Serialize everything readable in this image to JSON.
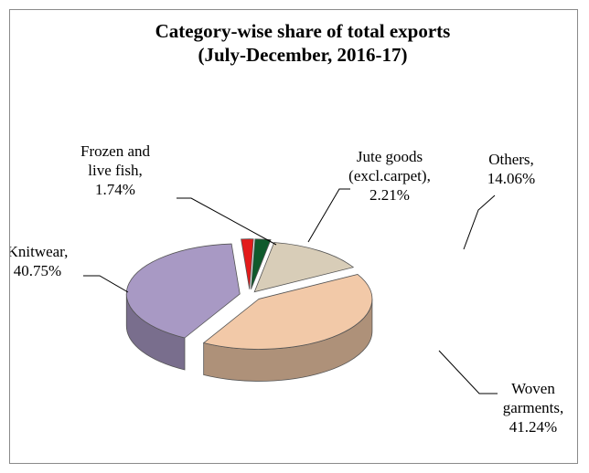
{
  "chart_data": {
    "type": "pie",
    "title": "Category-wise share of total exports",
    "subtitle": "(July-December, 2016-17)",
    "slices": [
      {
        "name": "Others",
        "value": 14.06,
        "label_lines": [
          "Others,",
          "14.06%"
        ],
        "color": "#d8cdb8"
      },
      {
        "name": "Woven garments",
        "value": 41.24,
        "label_lines": [
          "Woven",
          "garments,",
          "41.24%"
        ],
        "color": "#f2c9a8"
      },
      {
        "name": "Knitwear",
        "value": 40.75,
        "label_lines": [
          "Knitwear,",
          "40.75%"
        ],
        "color": "#a899c4"
      },
      {
        "name": "Frozen and live fish",
        "value": 1.74,
        "label_lines": [
          "Frozen and",
          "live fish,",
          "1.74%"
        ],
        "color": "#e31b1b"
      },
      {
        "name": "Jute goods (excl.carpet)",
        "value": 2.21,
        "label_lines": [
          "Jute goods",
          "(excl.carpet),",
          "2.21%"
        ],
        "color": "#0f5a2c"
      }
    ],
    "legend": "none",
    "style": "3d-exploded"
  }
}
